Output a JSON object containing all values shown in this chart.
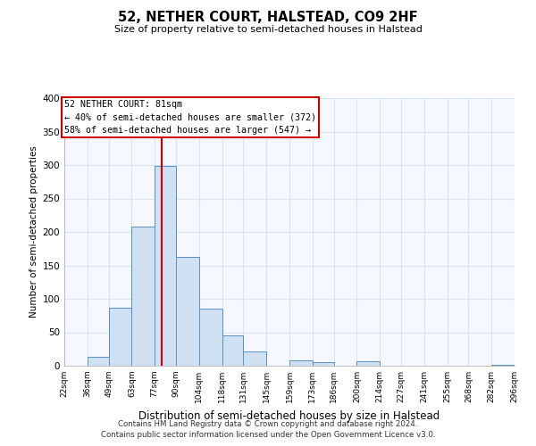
{
  "title": "52, NETHER COURT, HALSTEAD, CO9 2HF",
  "subtitle": "Size of property relative to semi-detached houses in Halstead",
  "xlabel": "Distribution of semi-detached houses by size in Halstead",
  "ylabel": "Number of semi-detached properties",
  "bar_edges": [
    22,
    36,
    49,
    63,
    77,
    90,
    104,
    118,
    131,
    145,
    159,
    173,
    186,
    200,
    214,
    227,
    241,
    255,
    268,
    282,
    296
  ],
  "bar_heights": [
    0,
    14,
    87,
    208,
    299,
    163,
    85,
    45,
    21,
    0,
    8,
    5,
    0,
    7,
    0,
    0,
    0,
    0,
    0,
    2
  ],
  "bar_color": "#cfe0f2",
  "bar_edge_color": "#5a8fc2",
  "property_value": 81,
  "vline_color": "#cc0000",
  "annotation_title": "52 NETHER COURT: 81sqm",
  "annotation_line1": "← 40% of semi-detached houses are smaller (372)",
  "annotation_line2": "58% of semi-detached houses are larger (547) →",
  "annotation_box_edgecolor": "#cc0000",
  "ylim": [
    0,
    400
  ],
  "yticks": [
    0,
    50,
    100,
    150,
    200,
    250,
    300,
    350,
    400
  ],
  "tick_labels": [
    "22sqm",
    "36sqm",
    "49sqm",
    "63sqm",
    "77sqm",
    "90sqm",
    "104sqm",
    "118sqm",
    "131sqm",
    "145sqm",
    "159sqm",
    "173sqm",
    "186sqm",
    "200sqm",
    "214sqm",
    "227sqm",
    "241sqm",
    "255sqm",
    "268sqm",
    "282sqm",
    "296sqm"
  ],
  "footer1": "Contains HM Land Registry data © Crown copyright and database right 2024.",
  "footer2": "Contains public sector information licensed under the Open Government Licence v3.0.",
  "background_color": "#ffffff",
  "plot_bg_color": "#f5f8ff",
  "grid_color": "#d8e4f0"
}
